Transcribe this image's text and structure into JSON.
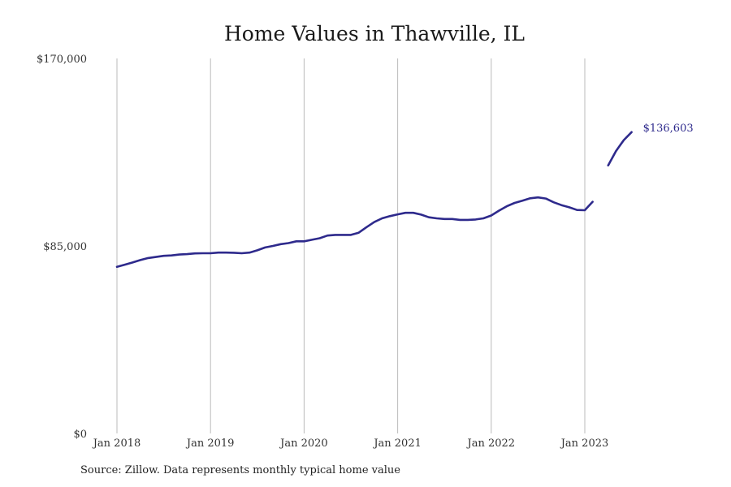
{
  "chart_data": {
    "type": "line",
    "title": "Home Values in Thawville, IL",
    "xlabel": "",
    "ylabel": "",
    "ylim": [
      0,
      170000
    ],
    "y_ticks": [
      {
        "value": 0,
        "label": "$0"
      },
      {
        "value": 85000,
        "label": "$85,000"
      },
      {
        "value": 170000,
        "label": "$170,000"
      }
    ],
    "x_ticks": [
      {
        "value": "2018-01",
        "label": "Jan 2018"
      },
      {
        "value": "2019-01",
        "label": "Jan 2019"
      },
      {
        "value": "2020-01",
        "label": "Jan 2020"
      },
      {
        "value": "2021-01",
        "label": "Jan 2021"
      },
      {
        "value": "2022-01",
        "label": "Jan 2022"
      },
      {
        "value": "2023-01",
        "label": "Jan 2023"
      }
    ],
    "grid": {
      "vertical": true,
      "horizontal": false
    },
    "line_color": "#2e2a8c",
    "grid_color": "#bbbbbb",
    "end_label": "$136,603",
    "series": [
      {
        "segments": [
          [
            [
              "2018-01",
              75500
            ],
            [
              "2018-02",
              76500
            ],
            [
              "2018-03",
              77500
            ],
            [
              "2018-04",
              78600
            ],
            [
              "2018-05",
              79500
            ],
            [
              "2018-06",
              80000
            ],
            [
              "2018-07",
              80500
            ],
            [
              "2018-08",
              80700
            ],
            [
              "2018-09",
              81100
            ],
            [
              "2018-10",
              81300
            ],
            [
              "2018-11",
              81600
            ],
            [
              "2018-12",
              81700
            ],
            [
              "2019-01",
              81700
            ],
            [
              "2019-02",
              82000
            ],
            [
              "2019-03",
              82000
            ],
            [
              "2019-04",
              81900
            ],
            [
              "2019-05",
              81700
            ],
            [
              "2019-06",
              82000
            ],
            [
              "2019-07",
              83000
            ],
            [
              "2019-08",
              84300
            ],
            [
              "2019-09",
              85000
            ],
            [
              "2019-10",
              85800
            ],
            [
              "2019-11",
              86300
            ],
            [
              "2019-12",
              87100
            ],
            [
              "2020-01",
              87100
            ],
            [
              "2020-02",
              87800
            ],
            [
              "2020-03",
              88500
            ],
            [
              "2020-04",
              89700
            ],
            [
              "2020-05",
              90000
            ],
            [
              "2020-06",
              90000
            ],
            [
              "2020-07",
              90000
            ],
            [
              "2020-08",
              91000
            ],
            [
              "2020-09",
              93500
            ],
            [
              "2020-10",
              95800
            ],
            [
              "2020-11",
              97500
            ],
            [
              "2020-12",
              98500
            ],
            [
              "2021-01",
              99300
            ],
            [
              "2021-02",
              100000
            ],
            [
              "2021-03",
              100000
            ],
            [
              "2021-04",
              99200
            ],
            [
              "2021-05",
              98000
            ],
            [
              "2021-06",
              97500
            ],
            [
              "2021-07",
              97200
            ],
            [
              "2021-08",
              97200
            ],
            [
              "2021-09",
              96800
            ],
            [
              "2021-10",
              96800
            ],
            [
              "2021-11",
              97000
            ],
            [
              "2021-12",
              97500
            ],
            [
              "2022-01",
              98800
            ],
            [
              "2022-02",
              101000
            ],
            [
              "2022-03",
              103000
            ],
            [
              "2022-04",
              104500
            ],
            [
              "2022-05",
              105500
            ],
            [
              "2022-06",
              106600
            ],
            [
              "2022-07",
              107000
            ],
            [
              "2022-08",
              106500
            ],
            [
              "2022-09",
              104800
            ],
            [
              "2022-10",
              103500
            ],
            [
              "2022-11",
              102500
            ],
            [
              "2022-12",
              101300
            ],
            [
              "2023-01",
              101200
            ],
            [
              "2023-02",
              105000
            ]
          ],
          [
            [
              "2023-04",
              121500
            ],
            [
              "2023-05",
              128000
            ],
            [
              "2023-06",
              133000
            ],
            [
              "2023-07",
              136603
            ]
          ]
        ]
      }
    ]
  },
  "footer": {
    "source": "Source: Zillow. Data represents monthly typical home value"
  }
}
